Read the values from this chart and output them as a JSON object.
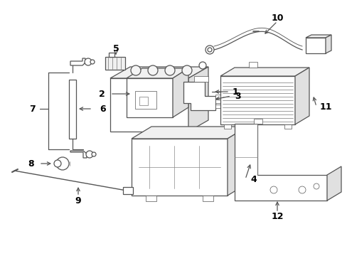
{
  "background_color": "#ffffff",
  "line_color": "#555555",
  "text_color": "#000000",
  "fig_width": 4.89,
  "fig_height": 3.6,
  "dpi": 100
}
